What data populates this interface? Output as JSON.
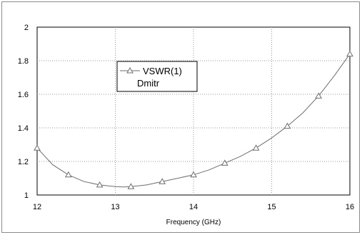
{
  "chart_data": {
    "type": "line",
    "xlabel": "Frequency (GHz)",
    "ylabel": "",
    "xlim": [
      12,
      16
    ],
    "ylim": [
      1,
      2
    ],
    "x_ticks": [
      "12",
      "13",
      "14",
      "15",
      "16"
    ],
    "y_ticks": [
      "1",
      "1.2",
      "1.4",
      "1.6",
      "1.8",
      "2"
    ],
    "grid": true,
    "legend_position": "upper-left-center",
    "series": [
      {
        "name": "VSWR(1)",
        "subtitle": "Dmitr",
        "color": "#6e6e6e",
        "marker": "triangle",
        "marker_x": [
          12.0,
          12.4,
          12.8,
          13.2,
          13.6,
          14.0,
          14.4,
          14.8,
          15.2,
          15.6,
          16.0
        ],
        "marker_y": [
          1.28,
          1.12,
          1.06,
          1.05,
          1.08,
          1.12,
          1.19,
          1.28,
          1.41,
          1.59,
          1.84
        ],
        "x": [
          12.0,
          12.2,
          12.4,
          12.6,
          12.8,
          13.0,
          13.1,
          13.2,
          13.4,
          13.6,
          13.8,
          14.0,
          14.2,
          14.4,
          14.6,
          14.8,
          15.0,
          15.2,
          15.4,
          15.6,
          15.8,
          16.0
        ],
        "y": [
          1.28,
          1.18,
          1.12,
          1.08,
          1.06,
          1.05,
          1.048,
          1.05,
          1.06,
          1.08,
          1.1,
          1.12,
          1.15,
          1.19,
          1.23,
          1.28,
          1.34,
          1.41,
          1.49,
          1.59,
          1.71,
          1.84
        ]
      }
    ]
  }
}
